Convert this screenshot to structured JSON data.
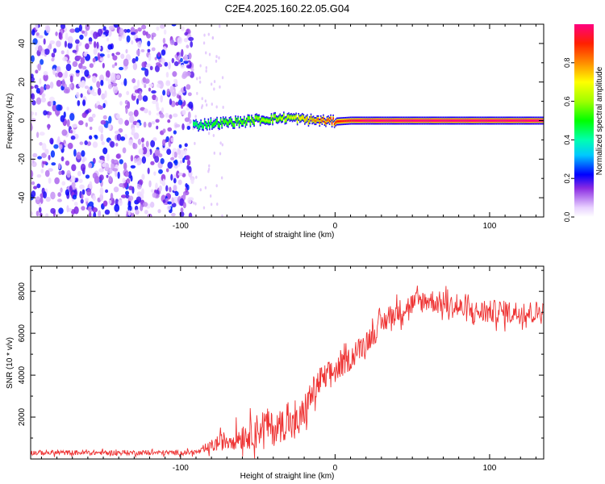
{
  "title": "C2E4.2025.160.22.05.G04",
  "chart_data": [
    {
      "type": "heatmap",
      "name": "spectrogram",
      "xlabel": "Height of straight line (km)",
      "ylabel": "Frequency (Hz)",
      "xlim": [
        -197,
        135
      ],
      "ylim": [
        -50,
        50
      ],
      "xticks": [
        -100,
        0,
        100
      ],
      "xtick_labels": [
        "-100",
        "0",
        "100"
      ],
      "yticks": [
        -40,
        -20,
        0,
        20,
        40
      ],
      "ytick_labels": [
        "-40",
        "-20",
        "0",
        "20",
        "40"
      ],
      "noise_region_x": [
        -197,
        -92
      ],
      "carrier_track": [
        {
          "x": -92,
          "f": -2.5,
          "amp": 0.45
        },
        {
          "x": -80,
          "f": -1.5,
          "amp": 0.5
        },
        {
          "x": -70,
          "f": -1.0,
          "amp": 0.55
        },
        {
          "x": -60,
          "f": -0.5,
          "amp": 0.55
        },
        {
          "x": -50,
          "f": 0.5,
          "amp": 0.6
        },
        {
          "x": -40,
          "f": 1.0,
          "amp": 0.6
        },
        {
          "x": -30,
          "f": 1.5,
          "amp": 0.65
        },
        {
          "x": -20,
          "f": 0.5,
          "amp": 0.75
        },
        {
          "x": -10,
          "f": 0.0,
          "amp": 0.85
        },
        {
          "x": 0,
          "f": -0.5,
          "amp": 0.9
        },
        {
          "x": 10,
          "f": 0.0,
          "amp": 0.95
        },
        {
          "x": 20,
          "f": 0.0,
          "amp": 1.0
        },
        {
          "x": 135,
          "f": 0.0,
          "amp": 1.0
        }
      ],
      "colorbar": {
        "label": "Normalized spectral amplitude",
        "range": [
          0,
          1
        ],
        "ticks": [
          0.0,
          0.2,
          0.4,
          0.6,
          0.8
        ],
        "tick_labels": [
          "0.0",
          "0.2",
          "0.4",
          "0.6",
          "0.8"
        ]
      }
    },
    {
      "type": "line",
      "name": "snr",
      "xlabel": "Height of straight line (km)",
      "ylabel": "SNR (10 * v/v)",
      "xlim": [
        -197,
        135
      ],
      "ylim": [
        0,
        9200
      ],
      "xticks": [
        -100,
        0,
        100
      ],
      "xtick_labels": [
        "-100",
        "0",
        "100"
      ],
      "yticks": [
        2000,
        4000,
        6000,
        8000
      ],
      "ytick_labels": [
        "2000",
        "4000",
        "6000",
        "8000"
      ],
      "series": [
        {
          "name": "SNR",
          "color": "#ee3333",
          "x": [
            -197,
            -180,
            -160,
            -140,
            -120,
            -100,
            -90,
            -85,
            -80,
            -75,
            -70,
            -65,
            -60,
            -55,
            -50,
            -45,
            -40,
            -35,
            -30,
            -27,
            -25,
            -22,
            -20,
            -17,
            -15,
            -12,
            -10,
            -7,
            -5,
            -2,
            0,
            5,
            10,
            15,
            20,
            25,
            30,
            35,
            40,
            45,
            50,
            55,
            60,
            65,
            70,
            75,
            80,
            85,
            90,
            95,
            100,
            105,
            110,
            115,
            120,
            125,
            130,
            135
          ],
          "y": [
            300,
            300,
            300,
            300,
            300,
            300,
            320,
            400,
            600,
            800,
            900,
            1000,
            1100,
            1200,
            1400,
            1700,
            1400,
            1600,
            1800,
            1500,
            1600,
            1900,
            2300,
            2800,
            3100,
            3400,
            3700,
            3800,
            4000,
            4100,
            4200,
            4500,
            4800,
            5200,
            5600,
            6000,
            6400,
            6800,
            7000,
            7200,
            7400,
            7500,
            7600,
            7500,
            7400,
            7300,
            7200,
            7100,
            7000,
            7000,
            7000,
            7050,
            7000,
            7000,
            7000,
            7000,
            7000,
            7000
          ],
          "noise_amplitude": [
            150,
            150,
            150,
            150,
            150,
            150,
            150,
            200,
            400,
            500,
            600,
            700,
            800,
            900,
            1000,
            1000,
            1000,
            1000,
            1000,
            1000,
            1100,
            1100,
            1000,
            1000,
            1000,
            900,
            900,
            900,
            800,
            800,
            800,
            700,
            700,
            700,
            700,
            700,
            700,
            700,
            700,
            700,
            700,
            700,
            700,
            700,
            700,
            700,
            700,
            700,
            700,
            700,
            700,
            700,
            700,
            700,
            700,
            700,
            700,
            700
          ]
        }
      ]
    }
  ]
}
